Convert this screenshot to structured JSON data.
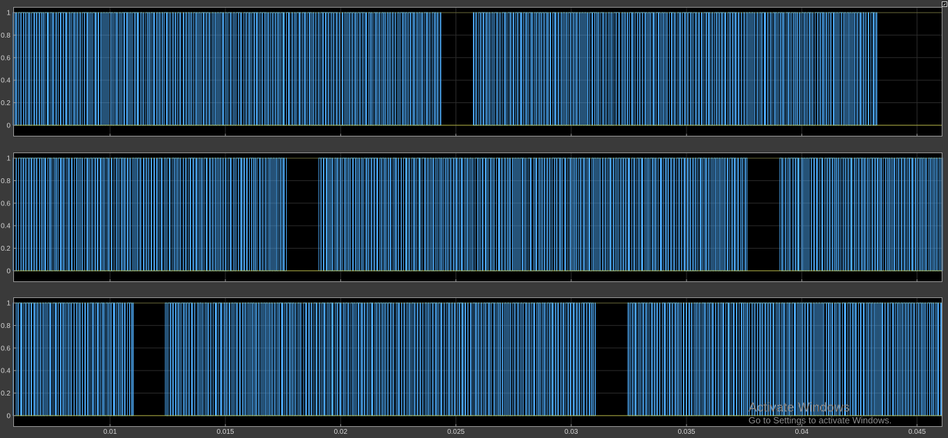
{
  "chart_data": [
    {
      "type": "line",
      "step": true,
      "xlim": [
        0.0058,
        0.0461
      ],
      "ylim": [
        -0.1,
        1.05
      ],
      "yticks": [
        "0",
        "0.2",
        "0.4",
        "0.6",
        "0.8",
        "1"
      ],
      "yticks_values": [
        0,
        0.2,
        0.4,
        0.6,
        0.8,
        1
      ],
      "xtick_values": [
        0.01,
        0.015,
        0.02,
        0.025,
        0.03,
        0.035,
        0.04,
        0.045
      ],
      "xticklabels": [],
      "grid": true,
      "segments": [
        {
          "x_start": 0.0058,
          "x_end": 0.02435,
          "pulse_period": 0.000115,
          "duty_min": 0.15,
          "duty_max": 0.85
        },
        {
          "x_end_gap": 0.02575
        },
        {
          "x_start": 0.02575,
          "x_end": 0.04325,
          "pulse_period": 0.000115,
          "duty_min": 0.15,
          "duty_max": 0.85
        }
      ],
      "series": [
        {
          "values_low": 0,
          "values_high": 1,
          "color": "#4aa3ee"
        }
      ]
    },
    {
      "type": "line",
      "step": true,
      "xlim": [
        0.0058,
        0.0461
      ],
      "ylim": [
        -0.1,
        1.05
      ],
      "yticks": [
        "0",
        "0.2",
        "0.4",
        "0.6",
        "0.8",
        "1"
      ],
      "yticks_values": [
        0,
        0.2,
        0.4,
        0.6,
        0.8,
        1
      ],
      "xtick_values": [
        0.01,
        0.015,
        0.02,
        0.025,
        0.03,
        0.035,
        0.04,
        0.045
      ],
      "xticklabels": [],
      "grid": true,
      "segments": [
        {
          "x_start": 0.0058,
          "x_end": 0.01765,
          "pulse_period": 0.000115,
          "duty_min": 0.15,
          "duty_max": 0.85
        },
        {
          "x_end_gap": 0.01905
        },
        {
          "x_start": 0.01905,
          "x_end": 0.03765,
          "pulse_period": 0.000115,
          "duty_min": 0.15,
          "duty_max": 0.85
        },
        {
          "x_end_gap": 0.03905
        },
        {
          "x_start": 0.03905,
          "x_end": 0.0461,
          "pulse_period": 0.000115,
          "duty_min": 0.15,
          "duty_max": 0.85
        }
      ],
      "series": [
        {
          "values_low": 0,
          "values_high": 1,
          "color": "#4aa3ee"
        }
      ]
    },
    {
      "type": "line",
      "step": true,
      "xlim": [
        0.0058,
        0.0461
      ],
      "ylim": [
        -0.1,
        1.05
      ],
      "yticks": [
        "0",
        "0.2",
        "0.4",
        "0.6",
        "0.8",
        "1"
      ],
      "yticks_values": [
        0,
        0.2,
        0.4,
        0.6,
        0.8,
        1
      ],
      "xtick_values": [
        0.01,
        0.015,
        0.02,
        0.025,
        0.03,
        0.035,
        0.04,
        0.045
      ],
      "xticklabels": [
        "0.01",
        "0.015",
        "0.02",
        "0.025",
        "0.03",
        "0.035",
        "0.04",
        "0.045"
      ],
      "grid": true,
      "segments": [
        {
          "x_start": 0.0058,
          "x_end": 0.011,
          "pulse_period": 0.000115,
          "duty_min": 0.15,
          "duty_max": 0.85
        },
        {
          "x_end_gap": 0.0124
        },
        {
          "x_start": 0.0124,
          "x_end": 0.03105,
          "pulse_period": 0.000115,
          "duty_min": 0.15,
          "duty_max": 0.85
        },
        {
          "x_end_gap": 0.03245
        },
        {
          "x_start": 0.03245,
          "x_end": 0.0461,
          "pulse_period": 0.000115,
          "duty_min": 0.15,
          "duty_max": 0.85
        }
      ],
      "series": [
        {
          "values_low": 0,
          "values_high": 1,
          "color": "#4aa3ee"
        }
      ]
    }
  ],
  "watermark": {
    "title": "Activate Windows",
    "subtitle": "Go to Settings to activate Windows."
  },
  "colors": {
    "plot_bg": "#000000",
    "figure_bg": "#3a3a3a",
    "axis_frame": "#9a9a9a",
    "grid": "#2c2c2c",
    "signal": "#4aa3ee",
    "baseline": "#d8d84a",
    "tick_text": "#d4d4d4"
  }
}
